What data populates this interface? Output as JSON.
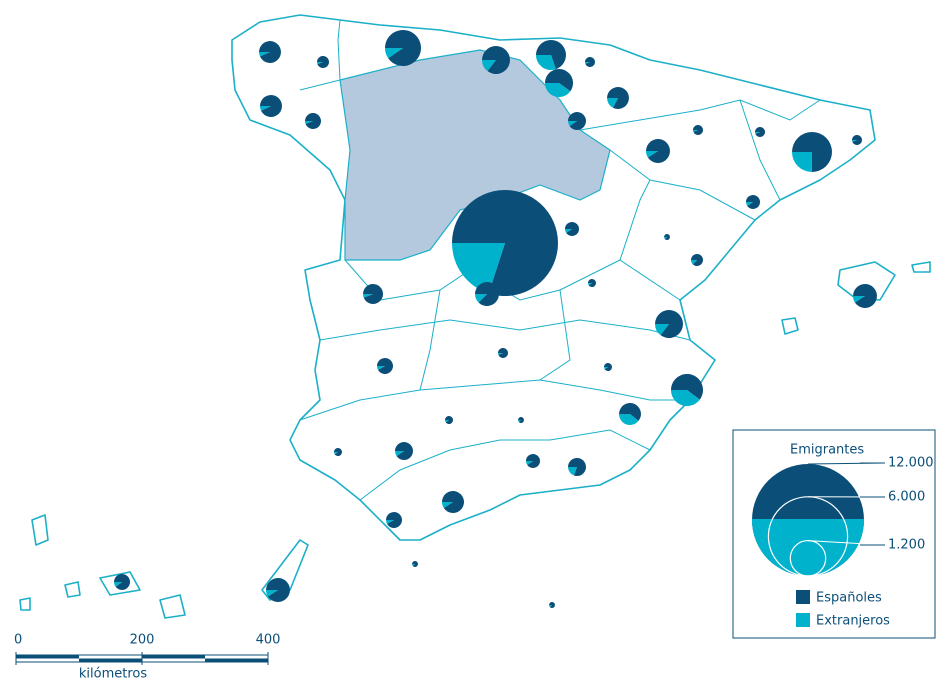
{
  "chart_data": {
    "type": "pie-map",
    "legend_title": "Emigrantes",
    "legend_sizes": [
      {
        "value": 12000,
        "label": "12.000"
      },
      {
        "value": 6000,
        "label": "6.000"
      },
      {
        "value": 1200,
        "label": "1.200"
      }
    ],
    "series": [
      {
        "name": "Españoles",
        "color": "#0b4f79",
        "values": [
          430,
          130,
          1120,
          640,
          600,
          90,
          450,
          380,
          430,
          230,
          280,
          90,
          90,
          90,
          1150,
          500,
          170,
          170,
          8600,
          480,
          30,
          120,
          55,
          360,
          500,
          640,
          225,
          90,
          55,
          590,
          280,
          55,
          30,
          55,
          280,
          170,
          250,
          225,
          420,
          30,
          30,
          500,
          220
        ],
        "legend": true
      },
      {
        "name": "Extranjeros",
        "color": "#00b2cc",
        "values": [
          30,
          8,
          120,
          110,
          260,
          6,
          300,
          80,
          33,
          15,
          30,
          6,
          6,
          6,
          380,
          50,
          18,
          18,
          2150,
          70,
          4,
          18,
          6,
          23,
          50,
          110,
          20,
          6,
          6,
          390,
          180,
          6,
          4,
          6,
          30,
          18,
          60,
          20,
          43,
          4,
          4,
          50,
          25
        ]
      }
    ],
    "scale_ticks": [
      0,
      200,
      400
    ],
    "scale_unit": "kilómetros"
  }
}
